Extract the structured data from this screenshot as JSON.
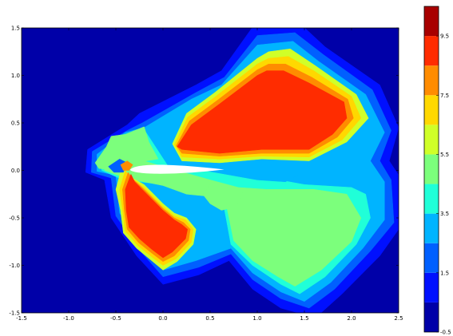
{
  "chart_data": {
    "type": "filled-contour",
    "title": "",
    "xlabel": "",
    "ylabel": "",
    "xlim": [
      -1.5,
      2.5
    ],
    "ylim": [
      -1.5,
      1.5
    ],
    "x_ticks": [
      "-1.5",
      "-1.0",
      "-0.5",
      "0.0",
      "0.5",
      "1.0",
      "1.5",
      "2.0",
      "2.5"
    ],
    "y_ticks": [
      "-1.5",
      "-1.0",
      "-0.5",
      "0.0",
      "0.5",
      "1.0",
      "1.5"
    ],
    "grid": false,
    "colorbar": {
      "range": [
        -0.5,
        10.5
      ],
      "tick_labels": [
        "-0.5",
        "1.5",
        "3.5",
        "5.5",
        "7.5",
        "9.5"
      ],
      "tick_values": [
        -0.5,
        1.5,
        3.5,
        5.5,
        7.5,
        9.5
      ],
      "level_step": 1,
      "colors": [
        "#0000a8",
        "#0010ff",
        "#0060ff",
        "#00b4ff",
        "#20ffd8",
        "#7cff7c",
        "#d0ff28",
        "#ffd800",
        "#ff8c00",
        "#ff2c00",
        "#a80000"
      ]
    },
    "obstacle": {
      "shape": "airfoil",
      "x_range": [
        -0.35,
        0.65
      ],
      "color": "#ffffff"
    },
    "regions": [
      {
        "level": 1.0,
        "points": [
          [
            -0.8,
            0.22
          ],
          [
            -0.38,
            0.48
          ],
          [
            -0.25,
            0.6
          ],
          [
            0.35,
            0.9
          ],
          [
            0.62,
            1.05
          ],
          [
            0.98,
            1.55
          ],
          [
            1.45,
            1.55
          ],
          [
            1.72,
            1.3
          ],
          [
            2.3,
            0.9
          ],
          [
            2.5,
            0.45
          ],
          [
            2.4,
            0.1
          ],
          [
            2.5,
            -0.05
          ],
          [
            2.55,
            -0.55
          ],
          [
            2.3,
            -0.9
          ],
          [
            1.9,
            -1.3
          ],
          [
            1.62,
            -1.55
          ],
          [
            1.25,
            -1.45
          ],
          [
            0.95,
            -1.25
          ],
          [
            0.7,
            -0.95
          ],
          [
            0.38,
            -1.1
          ],
          [
            0.0,
            -1.2
          ],
          [
            -0.28,
            -0.9
          ],
          [
            -0.55,
            -0.5
          ],
          [
            -0.62,
            -0.1
          ],
          [
            -0.82,
            -0.02
          ]
        ]
      },
      {
        "level": 2.0,
        "points": [
          [
            -0.75,
            0.2
          ],
          [
            -0.38,
            0.42
          ],
          [
            -0.22,
            0.5
          ],
          [
            0.35,
            0.82
          ],
          [
            0.65,
            0.98
          ],
          [
            1.0,
            1.42
          ],
          [
            1.4,
            1.45
          ],
          [
            1.7,
            1.22
          ],
          [
            2.22,
            0.85
          ],
          [
            2.42,
            0.42
          ],
          [
            2.3,
            0.1
          ],
          [
            2.42,
            -0.1
          ],
          [
            2.45,
            -0.55
          ],
          [
            2.2,
            -0.85
          ],
          [
            1.82,
            -1.25
          ],
          [
            1.55,
            -1.45
          ],
          [
            1.25,
            -1.35
          ],
          [
            0.95,
            -1.15
          ],
          [
            0.72,
            -0.88
          ],
          [
            0.38,
            -1.02
          ],
          [
            0.0,
            -1.12
          ],
          [
            -0.24,
            -0.85
          ],
          [
            -0.5,
            -0.48
          ],
          [
            -0.55,
            -0.08
          ],
          [
            -0.76,
            -0.02
          ]
        ]
      },
      {
        "level": 3.0,
        "points": [
          [
            -0.7,
            0.17
          ],
          [
            -0.4,
            0.4
          ],
          [
            -0.2,
            0.45
          ],
          [
            0.3,
            0.75
          ],
          [
            0.62,
            0.9
          ],
          [
            1.0,
            1.32
          ],
          [
            1.38,
            1.36
          ],
          [
            1.65,
            1.15
          ],
          [
            2.15,
            0.8
          ],
          [
            2.35,
            0.4
          ],
          [
            2.2,
            0.1
          ],
          [
            2.35,
            -0.12
          ],
          [
            2.35,
            -0.52
          ],
          [
            2.12,
            -0.82
          ],
          [
            1.78,
            -1.18
          ],
          [
            1.5,
            -1.38
          ],
          [
            1.25,
            -1.28
          ],
          [
            0.95,
            -1.08
          ],
          [
            0.72,
            -0.82
          ],
          [
            0.35,
            -0.95
          ],
          [
            0.0,
            -1.05
          ],
          [
            -0.22,
            -0.8
          ],
          [
            -0.46,
            -0.45
          ],
          [
            -0.5,
            -0.05
          ],
          [
            -0.7,
            -0.01
          ]
        ]
      },
      {
        "level": 4.0,
        "points": [
          [
            -0.65,
            0.15
          ],
          [
            -0.42,
            0.32
          ],
          [
            -0.18,
            0.4
          ],
          [
            0.05,
            0.05
          ],
          [
            0.6,
            0.0
          ],
          [
            0.95,
            -0.05
          ],
          [
            1.5,
            -0.15
          ],
          [
            2.0,
            -0.18
          ],
          [
            2.15,
            -0.25
          ],
          [
            2.2,
            -0.5
          ],
          [
            2.05,
            -0.78
          ],
          [
            1.72,
            -1.12
          ],
          [
            1.45,
            -1.3
          ],
          [
            1.25,
            -1.2
          ],
          [
            0.95,
            -1.0
          ],
          [
            0.72,
            -0.78
          ],
          [
            0.65,
            -0.4
          ],
          [
            0.55,
            -0.25
          ],
          [
            0.3,
            -0.22
          ],
          [
            0.0,
            -0.15
          ],
          [
            -0.42,
            -0.1
          ],
          [
            -0.65,
            0.0
          ]
        ]
      },
      {
        "level": 5.0,
        "points": [
          [
            -0.62,
            0.14
          ],
          [
            -0.42,
            0.28
          ],
          [
            -0.3,
            0.35
          ],
          [
            -0.2,
            0.1
          ],
          [
            0.0,
            0.04
          ],
          [
            0.5,
            -0.1
          ],
          [
            0.8,
            -0.18
          ],
          [
            1.1,
            -0.2
          ],
          [
            1.6,
            -0.2
          ],
          [
            1.95,
            -0.25
          ],
          [
            2.1,
            -0.5
          ],
          [
            2.0,
            -0.75
          ],
          [
            1.68,
            -1.05
          ],
          [
            1.4,
            -1.22
          ],
          [
            1.22,
            -1.12
          ],
          [
            0.95,
            -0.95
          ],
          [
            0.75,
            -0.74
          ],
          [
            0.68,
            -0.4
          ],
          [
            0.55,
            -0.28
          ],
          [
            0.25,
            -0.25
          ],
          [
            0.0,
            -0.16
          ],
          [
            -0.4,
            -0.08
          ],
          [
            -0.62,
            0.0
          ]
        ]
      },
      {
        "level": 3.0,
        "points": [
          [
            0.1,
            0.32
          ],
          [
            0.7,
            0.18
          ],
          [
            1.05,
            0.12
          ],
          [
            1.45,
            0.05
          ],
          [
            1.6,
            0.04
          ],
          [
            1.3,
            -0.12
          ],
          [
            1.0,
            -0.1
          ],
          [
            0.55,
            -0.02
          ],
          [
            0.15,
            0.05
          ],
          [
            0.08,
            0.15
          ]
        ]
      },
      {
        "level": 6.0,
        "points": [
          [
            0.1,
            0.28
          ],
          [
            0.25,
            0.6
          ],
          [
            0.55,
            0.82
          ],
          [
            1.0,
            1.18
          ],
          [
            1.12,
            1.25
          ],
          [
            1.35,
            1.28
          ],
          [
            1.62,
            1.1
          ],
          [
            2.05,
            0.8
          ],
          [
            2.18,
            0.55
          ],
          [
            1.95,
            0.3
          ],
          [
            1.55,
            0.1
          ],
          [
            1.05,
            0.12
          ],
          [
            0.6,
            0.08
          ],
          [
            0.2,
            0.1
          ]
        ]
      },
      {
        "level": 7.0,
        "points": [
          [
            0.12,
            0.27
          ],
          [
            0.26,
            0.56
          ],
          [
            0.56,
            0.78
          ],
          [
            1.0,
            1.12
          ],
          [
            1.12,
            1.18
          ],
          [
            1.33,
            1.2
          ],
          [
            1.6,
            1.05
          ],
          [
            2.0,
            0.78
          ],
          [
            2.1,
            0.55
          ],
          [
            1.9,
            0.32
          ],
          [
            1.55,
            0.14
          ],
          [
            1.05,
            0.15
          ],
          [
            0.6,
            0.12
          ],
          [
            0.2,
            0.14
          ]
        ]
      },
      {
        "level": 8.0,
        "points": [
          [
            0.14,
            0.26
          ],
          [
            0.28,
            0.52
          ],
          [
            0.58,
            0.74
          ],
          [
            1.0,
            1.06
          ],
          [
            1.12,
            1.12
          ],
          [
            1.3,
            1.12
          ],
          [
            1.58,
            0.98
          ],
          [
            1.96,
            0.75
          ],
          [
            2.02,
            0.55
          ],
          [
            1.85,
            0.35
          ],
          [
            1.55,
            0.18
          ],
          [
            1.05,
            0.18
          ],
          [
            0.6,
            0.15
          ],
          [
            0.2,
            0.18
          ]
        ]
      },
      {
        "level": 9.0,
        "points": [
          [
            0.15,
            0.25
          ],
          [
            0.3,
            0.48
          ],
          [
            0.6,
            0.7
          ],
          [
            1.0,
            1.0
          ],
          [
            1.1,
            1.05
          ],
          [
            1.28,
            1.05
          ],
          [
            1.55,
            0.92
          ],
          [
            1.92,
            0.72
          ],
          [
            1.95,
            0.55
          ],
          [
            1.8,
            0.38
          ],
          [
            1.55,
            0.22
          ],
          [
            1.05,
            0.22
          ],
          [
            0.6,
            0.18
          ],
          [
            0.2,
            0.22
          ]
        ]
      },
      {
        "level": 6.0,
        "points": [
          [
            -0.44,
            0.02
          ],
          [
            -0.38,
            -0.05
          ],
          [
            -0.2,
            -0.15
          ],
          [
            0.0,
            -0.35
          ],
          [
            0.12,
            -0.45
          ],
          [
            0.25,
            -0.5
          ],
          [
            0.35,
            -0.62
          ],
          [
            0.32,
            -0.78
          ],
          [
            0.15,
            -0.96
          ],
          [
            0.0,
            -1.05
          ],
          [
            -0.12,
            -0.95
          ],
          [
            -0.28,
            -0.82
          ],
          [
            -0.42,
            -0.66
          ],
          [
            -0.45,
            -0.42
          ],
          [
            -0.5,
            -0.2
          ]
        ]
      },
      {
        "level": 7.0,
        "points": [
          [
            -0.4,
            0.0
          ],
          [
            -0.35,
            -0.07
          ],
          [
            -0.2,
            -0.18
          ],
          [
            0.0,
            -0.38
          ],
          [
            0.12,
            -0.48
          ],
          [
            0.24,
            -0.52
          ],
          [
            0.32,
            -0.62
          ],
          [
            0.3,
            -0.76
          ],
          [
            0.14,
            -0.93
          ],
          [
            0.0,
            -1.0
          ],
          [
            -0.12,
            -0.91
          ],
          [
            -0.27,
            -0.79
          ],
          [
            -0.4,
            -0.64
          ],
          [
            -0.43,
            -0.42
          ],
          [
            -0.46,
            -0.2
          ]
        ]
      },
      {
        "level": 8.0,
        "points": [
          [
            -0.37,
            -0.02
          ],
          [
            -0.32,
            -0.09
          ],
          [
            -0.2,
            -0.2
          ],
          [
            0.0,
            -0.4
          ],
          [
            0.12,
            -0.5
          ],
          [
            0.22,
            -0.55
          ],
          [
            0.29,
            -0.62
          ],
          [
            0.27,
            -0.74
          ],
          [
            0.12,
            -0.9
          ],
          [
            0.0,
            -0.96
          ],
          [
            -0.12,
            -0.87
          ],
          [
            -0.26,
            -0.76
          ],
          [
            -0.38,
            -0.62
          ],
          [
            -0.41,
            -0.42
          ],
          [
            -0.43,
            -0.2
          ]
        ]
      },
      {
        "level": 9.0,
        "points": [
          [
            -0.34,
            -0.04
          ],
          [
            -0.3,
            -0.12
          ],
          [
            -0.2,
            -0.22
          ],
          [
            0.0,
            -0.42
          ],
          [
            0.12,
            -0.52
          ],
          [
            0.2,
            -0.57
          ],
          [
            0.26,
            -0.62
          ],
          [
            0.24,
            -0.72
          ],
          [
            0.1,
            -0.86
          ],
          [
            0.0,
            -0.92
          ],
          [
            -0.12,
            -0.83
          ],
          [
            -0.25,
            -0.72
          ],
          [
            -0.36,
            -0.6
          ],
          [
            -0.39,
            -0.42
          ],
          [
            -0.4,
            -0.2
          ]
        ]
      },
      {
        "level": 5.0,
        "points": [
          [
            -0.72,
            0.08
          ],
          [
            -0.6,
            0.25
          ],
          [
            -0.55,
            0.36
          ],
          [
            -0.4,
            0.38
          ],
          [
            -0.2,
            0.46
          ],
          [
            -0.15,
            0.3
          ],
          [
            -0.05,
            0.12
          ],
          [
            -0.3,
            0.08
          ],
          [
            -0.5,
            0.0
          ],
          [
            -0.68,
            0.02
          ]
        ]
      },
      {
        "level": 5.0,
        "points": [
          [
            0.5,
            -0.15
          ],
          [
            0.7,
            -0.18
          ],
          [
            0.85,
            -0.22
          ],
          [
            0.78,
            -0.38
          ],
          [
            0.62,
            -0.42
          ],
          [
            0.5,
            -0.35
          ],
          [
            0.42,
            -0.25
          ]
        ]
      },
      {
        "level": 2.0,
        "points": [
          [
            -0.58,
            0.04
          ],
          [
            -0.46,
            0.12
          ],
          [
            -0.38,
            0.08
          ],
          [
            -0.42,
            -0.02
          ],
          [
            -0.52,
            -0.02
          ]
        ]
      },
      {
        "level": 8.0,
        "points": [
          [
            -0.45,
            0.06
          ],
          [
            -0.38,
            0.1
          ],
          [
            -0.32,
            0.06
          ],
          [
            -0.36,
            0.0
          ],
          [
            -0.42,
            0.0
          ]
        ]
      }
    ]
  }
}
